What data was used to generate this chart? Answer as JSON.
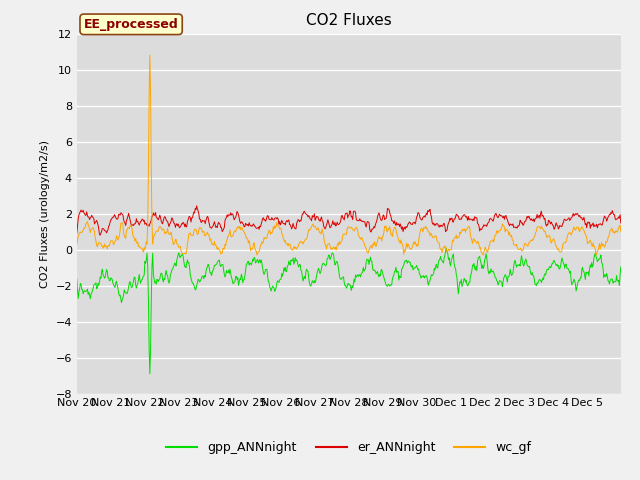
{
  "title": "CO2 Fluxes",
  "ylabel": "CO2 Fluxes (urology/m2/s)",
  "ylim": [
    -8,
    12
  ],
  "yticks": [
    -8,
    -6,
    -4,
    -2,
    0,
    2,
    4,
    6,
    8,
    10,
    12
  ],
  "figure_bg": "#f0f0f0",
  "plot_bg": "#dcdcdc",
  "grid_color": "#ffffff",
  "annotation_text": "EE_processed",
  "annotation_fg": "#8B0000",
  "annotation_bg": "#ffffcc",
  "annotation_edge": "#8B4513",
  "series": {
    "gpp_ANNnight": {
      "color": "#00dd00",
      "label": "gpp_ANNnight"
    },
    "er_ANNnight": {
      "color": "#dd0000",
      "label": "er_ANNnight"
    },
    "wc_gf": {
      "color": "#ffa500",
      "label": "wc_gf"
    }
  },
  "spike_wc_val": 10.8,
  "spike_gpp_val": -6.9,
  "title_fontsize": 11,
  "legend_fontsize": 9,
  "axis_fontsize": 8,
  "ylabel_fontsize": 8,
  "tick_labels": [
    "Nov 20",
    "Nov 21",
    "Nov 22",
    "Nov 23",
    "Nov 24",
    "Nov 25",
    "Nov 26",
    "Nov 27",
    "Nov 28",
    "Nov 29",
    "Nov 30",
    "Dec 1",
    "Dec 2",
    "Dec 3",
    "Dec 4",
    "Dec 5"
  ]
}
